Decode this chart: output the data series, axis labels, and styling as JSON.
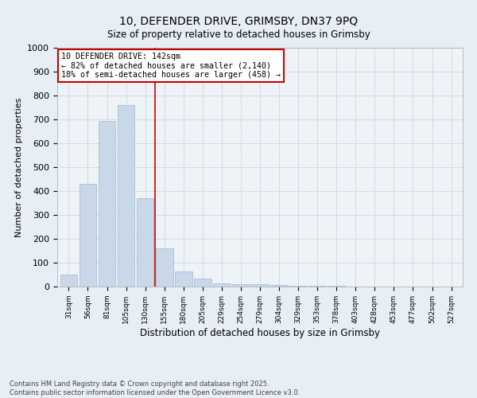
{
  "title1": "10, DEFENDER DRIVE, GRIMSBY, DN37 9PQ",
  "title2": "Size of property relative to detached houses in Grimsby",
  "xlabel": "Distribution of detached houses by size in Grimsby",
  "ylabel": "Number of detached properties",
  "categories": [
    "31sqm",
    "56sqm",
    "81sqm",
    "105sqm",
    "130sqm",
    "155sqm",
    "180sqm",
    "205sqm",
    "229sqm",
    "254sqm",
    "279sqm",
    "304sqm",
    "329sqm",
    "353sqm",
    "378sqm",
    "403sqm",
    "428sqm",
    "453sqm",
    "477sqm",
    "502sqm",
    "527sqm"
  ],
  "values": [
    50,
    430,
    695,
    760,
    370,
    160,
    65,
    35,
    15,
    10,
    10,
    8,
    3,
    2,
    5,
    1,
    0,
    0,
    0,
    0,
    0
  ],
  "bar_color": "#c8d8e8",
  "bar_edge_color": "#a0b8cc",
  "vline_x": 4.5,
  "vline_color": "#cc0000",
  "annotation_line1": "10 DEFENDER DRIVE: 142sqm",
  "annotation_line2": "← 82% of detached houses are smaller (2,140)",
  "annotation_line3": "18% of semi-detached houses are larger (458) →",
  "annotation_box_color": "#ffffff",
  "annotation_box_edge": "#cc0000",
  "ylim": [
    0,
    1000
  ],
  "yticks": [
    0,
    100,
    200,
    300,
    400,
    500,
    600,
    700,
    800,
    900,
    1000
  ],
  "footer_text": "Contains HM Land Registry data © Crown copyright and database right 2025.\nContains public sector information licensed under the Open Government Licence v3.0.",
  "bg_color": "#e8eef5",
  "plot_bg_color": "#eef3f8",
  "grid_color": "#c8d0dc"
}
